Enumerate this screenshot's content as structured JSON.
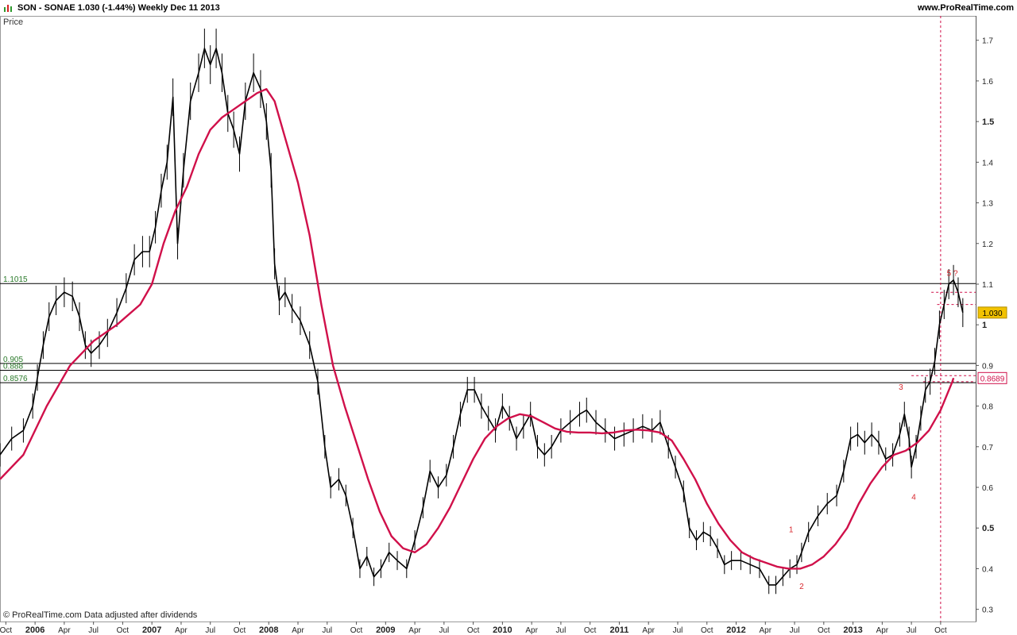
{
  "header": {
    "title": "SON - SONAE    1.030 (-1.44%)    Weekly  Dec 11 2013",
    "website": "www.ProRealTime.com",
    "price_label": "Price",
    "footer_note": "© ProRealTime.com  Data adjusted after dividends"
  },
  "chart_data": {
    "type": "line",
    "title": "SON - SONAE",
    "timeframe": "Weekly",
    "date": "Dec 11 2013",
    "last_price": "1.030",
    "change": "-1.44%",
    "ylabel": "Price",
    "ylim": [
      0.27,
      1.76
    ],
    "y_ticks": [
      0.3,
      0.4,
      0.5,
      0.6,
      0.7,
      0.8,
      0.9,
      1,
      1.1,
      1.2,
      1.3,
      1.4,
      1.5,
      1.6,
      1.7
    ],
    "x_ticks": [
      {
        "label": "Oct",
        "t": 2005.75,
        "bold": false
      },
      {
        "label": "2006",
        "t": 2006.0,
        "bold": true
      },
      {
        "label": "Apr",
        "t": 2006.25,
        "bold": false
      },
      {
        "label": "Jul",
        "t": 2006.5,
        "bold": false
      },
      {
        "label": "Oct",
        "t": 2006.75,
        "bold": false
      },
      {
        "label": "2007",
        "t": 2007.0,
        "bold": true
      },
      {
        "label": "Apr",
        "t": 2007.25,
        "bold": false
      },
      {
        "label": "Jul",
        "t": 2007.5,
        "bold": false
      },
      {
        "label": "Oct",
        "t": 2007.75,
        "bold": false
      },
      {
        "label": "2008",
        "t": 2008.0,
        "bold": true
      },
      {
        "label": "Apr",
        "t": 2008.25,
        "bold": false
      },
      {
        "label": "Jul",
        "t": 2008.5,
        "bold": false
      },
      {
        "label": "Oct",
        "t": 2008.75,
        "bold": false
      },
      {
        "label": "2009",
        "t": 2009.0,
        "bold": true
      },
      {
        "label": "Apr",
        "t": 2009.25,
        "bold": false
      },
      {
        "label": "Jul",
        "t": 2009.5,
        "bold": false
      },
      {
        "label": "Oct",
        "t": 2009.75,
        "bold": false
      },
      {
        "label": "2010",
        "t": 2010.0,
        "bold": true
      },
      {
        "label": "Apr",
        "t": 2010.25,
        "bold": false
      },
      {
        "label": "Jul",
        "t": 2010.5,
        "bold": false
      },
      {
        "label": "Oct",
        "t": 2010.75,
        "bold": false
      },
      {
        "label": "2011",
        "t": 2011.0,
        "bold": true
      },
      {
        "label": "Apr",
        "t": 2011.25,
        "bold": false
      },
      {
        "label": "Jul",
        "t": 2011.5,
        "bold": false
      },
      {
        "label": "Oct",
        "t": 2011.75,
        "bold": false
      },
      {
        "label": "2012",
        "t": 2012.0,
        "bold": true
      },
      {
        "label": "Apr",
        "t": 2012.25,
        "bold": false
      },
      {
        "label": "Jul",
        "t": 2012.5,
        "bold": false
      },
      {
        "label": "Oct",
        "t": 2012.75,
        "bold": false
      },
      {
        "label": "2013",
        "t": 2013.0,
        "bold": true
      },
      {
        "label": "Apr",
        "t": 2013.25,
        "bold": false
      },
      {
        "label": "Jul",
        "t": 2013.5,
        "bold": false
      },
      {
        "label": "Oct",
        "t": 2013.75,
        "bold": false
      }
    ],
    "xlim": [
      2005.7,
      2014.05
    ],
    "series": [
      {
        "color": "#000000",
        "points": [
          [
            2005.7,
            0.68
          ],
          [
            2005.8,
            0.72
          ],
          [
            2005.9,
            0.74
          ],
          [
            2005.98,
            0.8
          ],
          [
            2006.02,
            0.87
          ],
          [
            2006.07,
            0.95
          ],
          [
            2006.12,
            1.02
          ],
          [
            2006.18,
            1.06
          ],
          [
            2006.25,
            1.08
          ],
          [
            2006.32,
            1.07
          ],
          [
            2006.38,
            1.02
          ],
          [
            2006.43,
            0.95
          ],
          [
            2006.48,
            0.93
          ],
          [
            2006.55,
            0.95
          ],
          [
            2006.62,
            0.98
          ],
          [
            2006.7,
            1.03
          ],
          [
            2006.78,
            1.09
          ],
          [
            2006.85,
            1.16
          ],
          [
            2006.92,
            1.18
          ],
          [
            2006.98,
            1.18
          ],
          [
            2007.03,
            1.24
          ],
          [
            2007.08,
            1.33
          ],
          [
            2007.13,
            1.4
          ],
          [
            2007.18,
            1.56
          ],
          [
            2007.22,
            1.2
          ],
          [
            2007.27,
            1.38
          ],
          [
            2007.33,
            1.55
          ],
          [
            2007.4,
            1.62
          ],
          [
            2007.45,
            1.68
          ],
          [
            2007.5,
            1.64
          ],
          [
            2007.55,
            1.68
          ],
          [
            2007.6,
            1.62
          ],
          [
            2007.65,
            1.52
          ],
          [
            2007.7,
            1.48
          ],
          [
            2007.75,
            1.42
          ],
          [
            2007.8,
            1.55
          ],
          [
            2007.87,
            1.62
          ],
          [
            2007.93,
            1.58
          ],
          [
            2007.98,
            1.5
          ],
          [
            2008.02,
            1.38
          ],
          [
            2008.05,
            1.15
          ],
          [
            2008.09,
            1.06
          ],
          [
            2008.14,
            1.08
          ],
          [
            2008.2,
            1.04
          ],
          [
            2008.27,
            1.01
          ],
          [
            2008.35,
            0.95
          ],
          [
            2008.42,
            0.86
          ],
          [
            2008.48,
            0.7
          ],
          [
            2008.53,
            0.6
          ],
          [
            2008.6,
            0.62
          ],
          [
            2008.66,
            0.58
          ],
          [
            2008.72,
            0.5
          ],
          [
            2008.78,
            0.4
          ],
          [
            2008.84,
            0.43
          ],
          [
            2008.9,
            0.38
          ],
          [
            2008.96,
            0.4
          ],
          [
            2009.03,
            0.44
          ],
          [
            2009.1,
            0.42
          ],
          [
            2009.18,
            0.4
          ],
          [
            2009.25,
            0.47
          ],
          [
            2009.32,
            0.55
          ],
          [
            2009.38,
            0.64
          ],
          [
            2009.45,
            0.6
          ],
          [
            2009.52,
            0.63
          ],
          [
            2009.58,
            0.7
          ],
          [
            2009.64,
            0.78
          ],
          [
            2009.7,
            0.84
          ],
          [
            2009.76,
            0.84
          ],
          [
            2009.82,
            0.8
          ],
          [
            2009.88,
            0.77
          ],
          [
            2009.94,
            0.74
          ],
          [
            2010.0,
            0.8
          ],
          [
            2010.06,
            0.77
          ],
          [
            2010.12,
            0.72
          ],
          [
            2010.18,
            0.75
          ],
          [
            2010.24,
            0.78
          ],
          [
            2010.3,
            0.7
          ],
          [
            2010.36,
            0.68
          ],
          [
            2010.42,
            0.7
          ],
          [
            2010.5,
            0.74
          ],
          [
            2010.58,
            0.76
          ],
          [
            2010.66,
            0.78
          ],
          [
            2010.72,
            0.79
          ],
          [
            2010.8,
            0.76
          ],
          [
            2010.88,
            0.74
          ],
          [
            2010.96,
            0.72
          ],
          [
            2011.04,
            0.73
          ],
          [
            2011.12,
            0.74
          ],
          [
            2011.2,
            0.75
          ],
          [
            2011.28,
            0.74
          ],
          [
            2011.35,
            0.76
          ],
          [
            2011.42,
            0.7
          ],
          [
            2011.48,
            0.65
          ],
          [
            2011.55,
            0.59
          ],
          [
            2011.6,
            0.5
          ],
          [
            2011.66,
            0.47
          ],
          [
            2011.72,
            0.49
          ],
          [
            2011.78,
            0.48
          ],
          [
            2011.84,
            0.45
          ],
          [
            2011.9,
            0.41
          ],
          [
            2011.96,
            0.42
          ],
          [
            2012.04,
            0.42
          ],
          [
            2012.12,
            0.41
          ],
          [
            2012.2,
            0.4
          ],
          [
            2012.28,
            0.36
          ],
          [
            2012.34,
            0.36
          ],
          [
            2012.4,
            0.38
          ],
          [
            2012.46,
            0.4
          ],
          [
            2012.52,
            0.41
          ],
          [
            2012.56,
            0.44
          ],
          [
            2012.62,
            0.49
          ],
          [
            2012.7,
            0.53
          ],
          [
            2012.78,
            0.56
          ],
          [
            2012.86,
            0.58
          ],
          [
            2012.92,
            0.64
          ],
          [
            2012.98,
            0.72
          ],
          [
            2013.04,
            0.73
          ],
          [
            2013.1,
            0.71
          ],
          [
            2013.16,
            0.73
          ],
          [
            2013.22,
            0.71
          ],
          [
            2013.28,
            0.67
          ],
          [
            2013.34,
            0.68
          ],
          [
            2013.4,
            0.73
          ],
          [
            2013.44,
            0.78
          ],
          [
            2013.48,
            0.72
          ],
          [
            2013.5,
            0.65
          ],
          [
            2013.54,
            0.7
          ],
          [
            2013.58,
            0.77
          ],
          [
            2013.62,
            0.84
          ],
          [
            2013.66,
            0.86
          ],
          [
            2013.7,
            0.91
          ],
          [
            2013.74,
            1.0
          ],
          [
            2013.78,
            1.05
          ],
          [
            2013.82,
            1.1
          ],
          [
            2013.86,
            1.11
          ],
          [
            2013.9,
            1.08
          ],
          [
            2013.94,
            1.03
          ]
        ]
      },
      {
        "color": "#d0104a",
        "points": [
          [
            2005.7,
            0.62
          ],
          [
            2005.9,
            0.68
          ],
          [
            2006.1,
            0.8
          ],
          [
            2006.3,
            0.9
          ],
          [
            2006.5,
            0.96
          ],
          [
            2006.7,
            1.0
          ],
          [
            2006.9,
            1.05
          ],
          [
            2007.0,
            1.1
          ],
          [
            2007.1,
            1.2
          ],
          [
            2007.2,
            1.28
          ],
          [
            2007.3,
            1.34
          ],
          [
            2007.4,
            1.42
          ],
          [
            2007.5,
            1.48
          ],
          [
            2007.6,
            1.51
          ],
          [
            2007.7,
            1.53
          ],
          [
            2007.8,
            1.55
          ],
          [
            2007.9,
            1.57
          ],
          [
            2007.98,
            1.58
          ],
          [
            2008.05,
            1.55
          ],
          [
            2008.15,
            1.45
          ],
          [
            2008.25,
            1.35
          ],
          [
            2008.35,
            1.22
          ],
          [
            2008.45,
            1.05
          ],
          [
            2008.55,
            0.9
          ],
          [
            2008.65,
            0.8
          ],
          [
            2008.75,
            0.71
          ],
          [
            2008.85,
            0.62
          ],
          [
            2008.95,
            0.54
          ],
          [
            2009.05,
            0.48
          ],
          [
            2009.15,
            0.45
          ],
          [
            2009.25,
            0.44
          ],
          [
            2009.35,
            0.46
          ],
          [
            2009.45,
            0.5
          ],
          [
            2009.55,
            0.55
          ],
          [
            2009.65,
            0.61
          ],
          [
            2009.75,
            0.67
          ],
          [
            2009.85,
            0.72
          ],
          [
            2009.95,
            0.75
          ],
          [
            2010.05,
            0.77
          ],
          [
            2010.15,
            0.78
          ],
          [
            2010.25,
            0.775
          ],
          [
            2010.35,
            0.76
          ],
          [
            2010.45,
            0.745
          ],
          [
            2010.55,
            0.737
          ],
          [
            2010.65,
            0.735
          ],
          [
            2010.75,
            0.735
          ],
          [
            2010.85,
            0.733
          ],
          [
            2010.95,
            0.735
          ],
          [
            2011.05,
            0.74
          ],
          [
            2011.15,
            0.742
          ],
          [
            2011.25,
            0.74
          ],
          [
            2011.35,
            0.735
          ],
          [
            2011.45,
            0.715
          ],
          [
            2011.55,
            0.67
          ],
          [
            2011.65,
            0.62
          ],
          [
            2011.75,
            0.56
          ],
          [
            2011.85,
            0.51
          ],
          [
            2011.95,
            0.47
          ],
          [
            2012.05,
            0.44
          ],
          [
            2012.15,
            0.425
          ],
          [
            2012.25,
            0.415
          ],
          [
            2012.35,
            0.405
          ],
          [
            2012.45,
            0.4
          ],
          [
            2012.55,
            0.4
          ],
          [
            2012.65,
            0.41
          ],
          [
            2012.75,
            0.43
          ],
          [
            2012.85,
            0.46
          ],
          [
            2012.95,
            0.5
          ],
          [
            2013.05,
            0.56
          ],
          [
            2013.15,
            0.61
          ],
          [
            2013.25,
            0.65
          ],
          [
            2013.35,
            0.68
          ],
          [
            2013.45,
            0.69
          ],
          [
            2013.55,
            0.71
          ],
          [
            2013.65,
            0.74
          ],
          [
            2013.75,
            0.79
          ],
          [
            2013.85,
            0.86
          ],
          [
            2013.86,
            0.8689
          ]
        ]
      }
    ],
    "horizontal_levels": [
      {
        "label": "1.1015",
        "value": 1.1015
      },
      {
        "label": "0.905",
        "value": 0.905
      },
      {
        "label": "0.888",
        "value": 0.888
      },
      {
        "label": "0.8576",
        "value": 0.8576
      }
    ],
    "price_tags": [
      {
        "label": "1.030",
        "value": 1.03,
        "bg": "#f2c200",
        "fg": "#000000",
        "border": "#b08d00"
      },
      {
        "label": "0.8689",
        "value": 0.8689,
        "bg": "#ffffff",
        "fg": "#d0104a",
        "border": "#d0104a"
      }
    ],
    "wave_labels": [
      {
        "label": "1",
        "t": 2012.47,
        "value": 0.49
      },
      {
        "label": "2",
        "t": 2012.56,
        "value": 0.35
      },
      {
        "label": "3",
        "t": 2013.41,
        "value": 0.84
      },
      {
        "label": "4",
        "t": 2013.52,
        "value": 0.57
      },
      {
        "label": "5 ?",
        "t": 2013.85,
        "value": 1.12
      }
    ],
    "dashed_levels": [
      {
        "value": 1.08,
        "from": 2013.67
      },
      {
        "value": 1.05,
        "from": 2013.72
      },
      {
        "value": 0.875,
        "from": 2013.5
      },
      {
        "value": 0.86,
        "from": 2013.6
      }
    ],
    "vertical_marker_t": 2013.75
  }
}
